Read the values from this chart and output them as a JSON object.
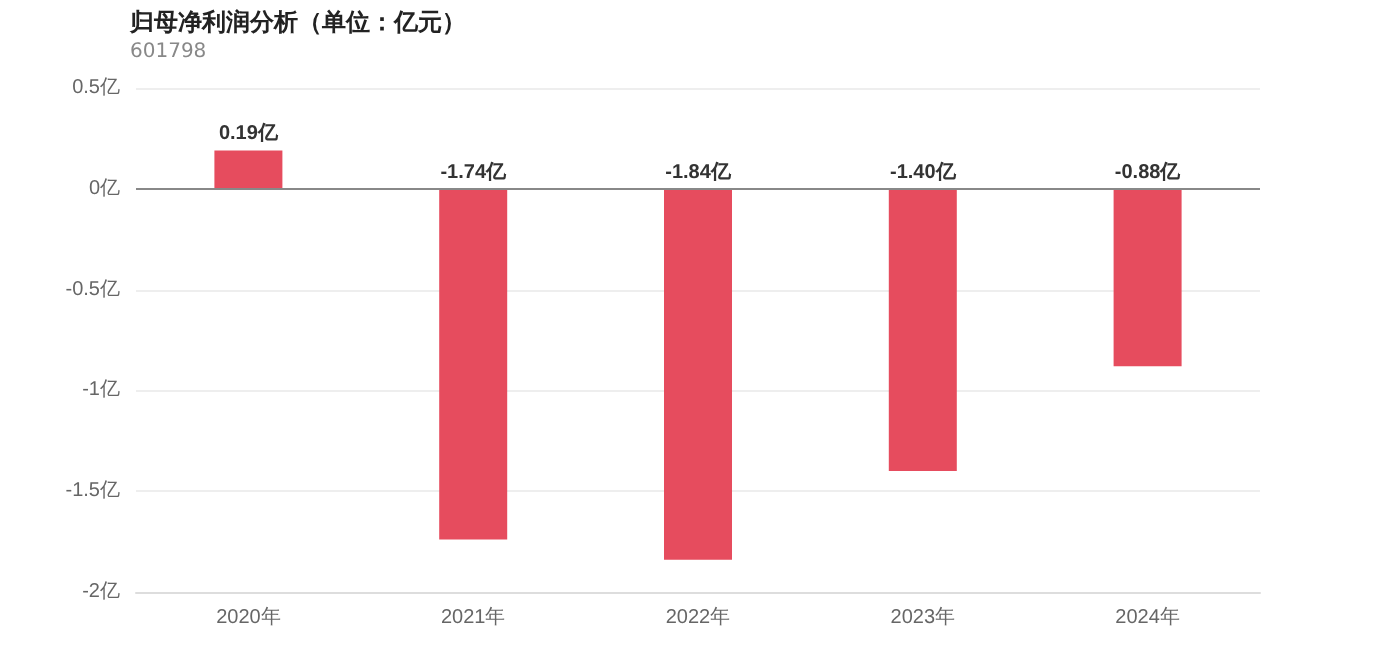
{
  "chart_data": {
    "type": "bar",
    "title": "归母净利润分析（单位：亿元）",
    "subtitle": "601798",
    "categories": [
      "2020年",
      "2021年",
      "2022年",
      "2023年",
      "2024年"
    ],
    "values": [
      0.19,
      -1.74,
      -1.84,
      -1.4,
      -0.88
    ],
    "value_labels": [
      "0.19亿",
      "-1.74亿",
      "-1.84亿",
      "-1.40亿",
      "-0.88亿"
    ],
    "color": "#e64c5e",
    "ylim": [
      -2,
      0.5
    ],
    "yticks": [
      {
        "value": -2,
        "label": "-2亿"
      },
      {
        "value": -1.5,
        "label": "-1.5亿"
      },
      {
        "value": -1,
        "label": "-1亿"
      },
      {
        "value": -0.5,
        "label": "-0.5亿"
      },
      {
        "value": 0,
        "label": "0亿"
      },
      {
        "value": 0.5,
        "label": "0.5亿"
      }
    ],
    "grid": "y"
  }
}
